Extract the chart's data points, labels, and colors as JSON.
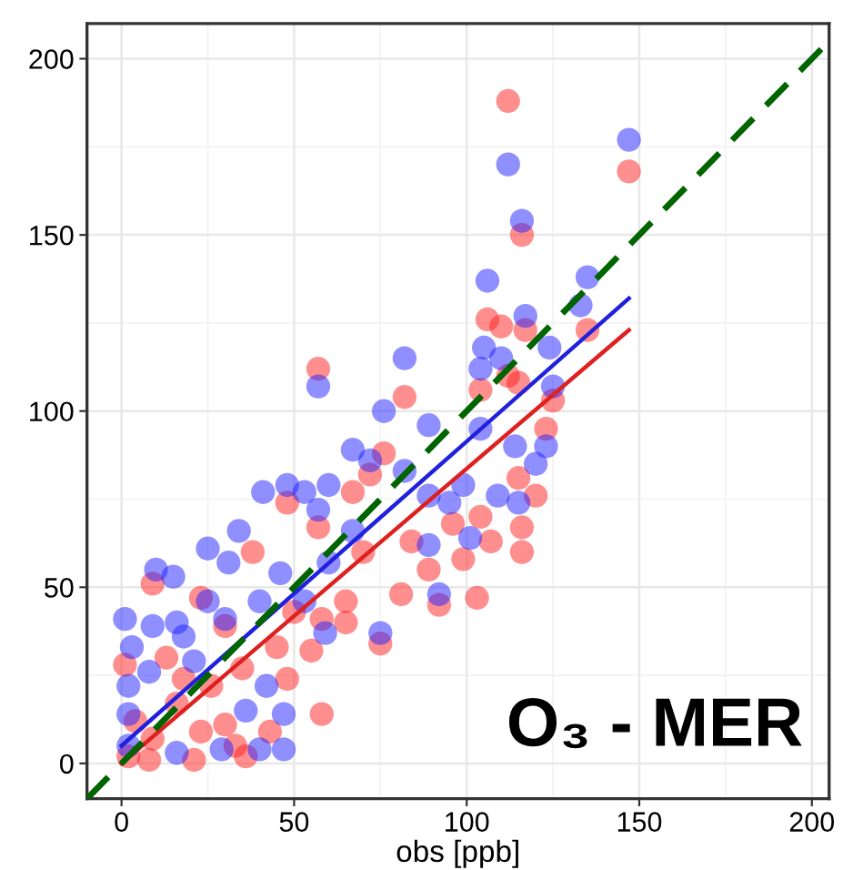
{
  "chart_data": {
    "type": "scatter",
    "xlabel": "obs [ppb]",
    "xlim": [
      -10,
      205
    ],
    "ylim": [
      -10,
      210
    ],
    "xticks": [
      0,
      50,
      100,
      150,
      200
    ],
    "yticks": [
      0,
      50,
      100,
      150,
      200
    ],
    "grid": true,
    "annotations": [
      "O₃ - MER"
    ],
    "series": [
      {
        "color": "#ff2020",
        "marker": "circle",
        "x": [
          57,
          112,
          147,
          116,
          82,
          106,
          110,
          135,
          117,
          112,
          115,
          125,
          123,
          104,
          1,
          9,
          23,
          38,
          48,
          57,
          67,
          76,
          72,
          58,
          48,
          30,
          43,
          36,
          21,
          8,
          2,
          4,
          16,
          26,
          35,
          45,
          55,
          65,
          75,
          65,
          81,
          92,
          103,
          89,
          99,
          107,
          116,
          116,
          120,
          115,
          104,
          96,
          84,
          70,
          13,
          18,
          30,
          50,
          58,
          9,
          23,
          33
        ],
        "values": [
          112,
          188,
          168,
          150,
          104,
          126,
          124,
          123,
          123,
          110,
          108,
          103,
          95,
          106,
          28,
          51,
          47,
          60,
          74,
          67,
          77,
          88,
          82,
          14,
          24,
          11,
          9,
          2,
          1,
          1,
          2,
          12,
          17,
          22,
          27,
          33,
          32,
          40,
          34,
          46,
          48,
          45,
          47,
          55,
          58,
          63,
          60,
          67,
          76,
          81,
          70,
          68,
          63,
          60,
          30,
          24,
          39,
          43,
          41,
          7,
          9,
          5
        ]
      },
      {
        "color": "#2020ff",
        "marker": "circle",
        "x": [
          57,
          112,
          147,
          116,
          106,
          135,
          133,
          82,
          76,
          117,
          105,
          124,
          104,
          110,
          125,
          89,
          1,
          10,
          15,
          25,
          34,
          41,
          48,
          53,
          60,
          67,
          72,
          89,
          92,
          75,
          59,
          47,
          36,
          47,
          40,
          29,
          16,
          2,
          2,
          2,
          3,
          9,
          16,
          31,
          46,
          57,
          82,
          95,
          101,
          104,
          114,
          123,
          120,
          115,
          109,
          99,
          89,
          67,
          60,
          25,
          18,
          30,
          40,
          8,
          21,
          42,
          53
        ],
        "values": [
          107,
          170,
          177,
          154,
          137,
          138,
          130,
          115,
          100,
          127,
          118,
          118,
          112,
          115,
          107,
          96,
          41,
          55,
          53,
          61,
          66,
          77,
          79,
          77,
          79,
          89,
          86,
          62,
          48,
          37,
          37,
          14,
          15,
          4,
          4,
          4,
          3,
          22,
          14,
          5,
          33,
          39,
          40,
          57,
          54,
          72,
          83,
          74,
          64,
          95,
          90,
          90,
          85,
          74,
          76,
          79,
          76,
          66,
          57,
          46,
          36,
          41,
          46,
          26,
          29,
          22,
          46
        ]
      },
      {
        "type": "line",
        "color": "#2020dd",
        "x": [
          0,
          147
        ],
        "values": [
          5,
          132
        ]
      },
      {
        "type": "line",
        "color": "#dd2020",
        "x": [
          0,
          147
        ],
        "values": [
          0,
          123
        ]
      },
      {
        "type": "line",
        "color": "#006400",
        "line_style": "dashed",
        "x": [
          -10,
          205
        ],
        "values": [
          -10,
          205
        ]
      }
    ]
  }
}
